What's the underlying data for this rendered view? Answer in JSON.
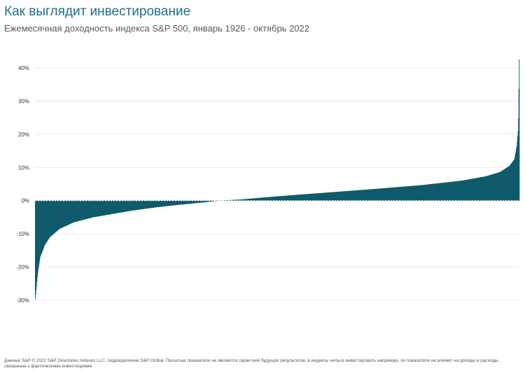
{
  "header": {
    "title": "Как выглядит инвестирование",
    "subtitle": "Ежемесячная доходность индекса S&P 500, январь 1926 - октябрь 2022"
  },
  "footnote": "Данные S&P © 2022 S&P DowJones Indexes LLC, подразделение S&P Global. Прошлые показатели не являются гарантией будущих результатов, в индексы нельзя инвестировать напрямую, их показатели не влияют на доходы и расходы, связанные с фактическими инвестициями.",
  "chart_data": {
    "type": "area",
    "title": "Как выглядит инвестирование",
    "subtitle": "Ежемесячная доходность индекса S&P 500, январь 1926 - октябрь 2022",
    "xlabel": "",
    "ylabel": "",
    "sorted": "ascending",
    "n_points": 1162,
    "ylim": [
      -30,
      40
    ],
    "y_ticks": [
      "40%",
      "30%",
      "20%",
      "10%",
      "0%",
      "-10%",
      "-20%",
      "-30%"
    ],
    "y_tick_values": [
      40,
      30,
      20,
      10,
      0,
      -10,
      -20,
      -30
    ],
    "grid": true,
    "legend": "none",
    "color": "#0f5a6b",
    "profile": {
      "rank_fraction": [
        0,
        0.005,
        0.01,
        0.02,
        0.03,
        0.05,
        0.08,
        0.12,
        0.16,
        0.2,
        0.25,
        0.3,
        0.35,
        0.38,
        0.42,
        0.5,
        0.6,
        0.7,
        0.8,
        0.88,
        0.93,
        0.96,
        0.98,
        0.99,
        0.995,
        0.998,
        1
      ],
      "value_pct": [
        -29.7,
        -22,
        -17,
        -13.3,
        -11,
        -8.5,
        -6.5,
        -5,
        -4,
        -3,
        -2,
        -1.2,
        -0.5,
        0,
        0.3,
        1.3,
        2.4,
        3.5,
        4.7,
        6,
        7.3,
        8.6,
        10.5,
        12.5,
        16.5,
        22,
        42.6
      ]
    }
  }
}
